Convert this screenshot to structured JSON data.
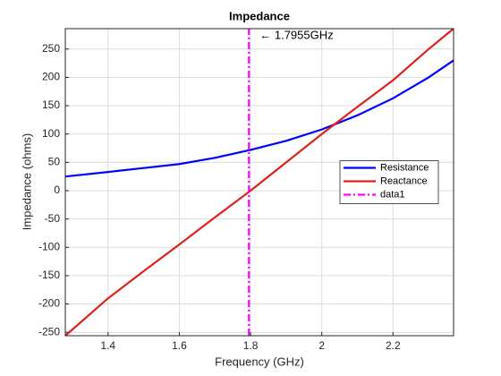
{
  "chart_data": {
    "type": "line",
    "title": "Impedance",
    "xlabel": "Frequency (GHz)",
    "ylabel": "Impedance (ohms)",
    "annotation": "← 1.7955GHz",
    "series": [
      {
        "name": "Resistance",
        "color": "#0000ff",
        "linestyle": "-",
        "x": [
          1.28,
          1.4,
          1.5,
          1.6,
          1.7,
          1.8,
          1.9,
          2.0,
          2.1,
          2.2,
          2.3,
          2.37
        ],
        "values": [
          25,
          33,
          40,
          47,
          58,
          72,
          88,
          108,
          133,
          163,
          200,
          230
        ]
      },
      {
        "name": "Reactance",
        "color": "#e0201b",
        "linestyle": "-",
        "x": [
          1.28,
          1.4,
          1.5,
          1.6,
          1.7,
          1.8,
          1.9,
          2.0,
          2.1,
          2.2,
          2.3,
          2.37
        ],
        "values": [
          -256,
          -190,
          -142,
          -95,
          -47,
          0,
          50,
          100,
          148,
          195,
          250,
          286
        ]
      },
      {
        "name": "data1",
        "color": "#ff00ff",
        "linestyle": "-.",
        "x": [
          1.7955,
          1.7955
        ],
        "values": [
          -256,
          286
        ]
      }
    ],
    "xlim": [
      1.28,
      2.37
    ],
    "ylim": [
      -256,
      286
    ],
    "xticks": [
      1.4,
      1.6,
      1.8,
      2,
      2.2
    ],
    "yticks": [
      -250,
      -200,
      -150,
      -100,
      -50,
      0,
      50,
      100,
      150,
      200,
      250
    ],
    "grid": true,
    "legend": "east"
  }
}
